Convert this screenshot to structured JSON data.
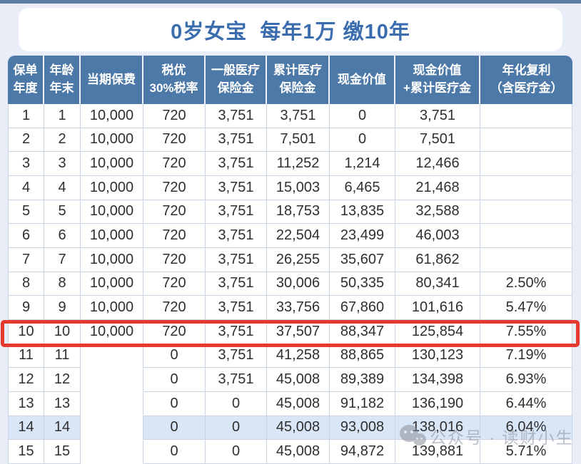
{
  "page": {
    "title": "0岁女宝  每年1万 缴10年",
    "watermark_text": "公众号 · 读财小生"
  },
  "colors": {
    "page_background": "#e9edf8",
    "top_bar": "#5d7fa7",
    "title_text": "#3a6cae",
    "header_background": "#4d79a8",
    "header_text": "#ffffff",
    "grid_line": "#ccd5e4",
    "highlight_row_background": "#d9e6f7",
    "red_box_border": "#e6392d",
    "cell_text": "#2f2f2f"
  },
  "table": {
    "headers": [
      "保单\n年度",
      "年龄\n年末",
      "当期保费",
      "税优\n30%税率",
      "一般医疗\n保险金",
      "累计医疗\n保险金",
      "现金价值",
      "现金价值\n+累计医疗金",
      "年化复利\n（含医疗金）"
    ],
    "rows": [
      {
        "cells": [
          "1",
          "1",
          "10,000",
          "720",
          "3,751",
          "3,751",
          "0",
          "3,751",
          ""
        ]
      },
      {
        "cells": [
          "2",
          "2",
          "10,000",
          "720",
          "3,751",
          "7,501",
          "0",
          "7,501",
          ""
        ]
      },
      {
        "cells": [
          "3",
          "3",
          "10,000",
          "720",
          "3,751",
          "11,252",
          "1,214",
          "12,466",
          ""
        ]
      },
      {
        "cells": [
          "4",
          "4",
          "10,000",
          "720",
          "3,751",
          "15,003",
          "6,465",
          "21,468",
          ""
        ]
      },
      {
        "cells": [
          "5",
          "5",
          "10,000",
          "720",
          "3,751",
          "18,753",
          "13,835",
          "32,588",
          ""
        ]
      },
      {
        "cells": [
          "6",
          "6",
          "10,000",
          "720",
          "3,751",
          "22,504",
          "23,499",
          "46,003",
          ""
        ]
      },
      {
        "cells": [
          "7",
          "7",
          "10,000",
          "720",
          "3,751",
          "26,255",
          "35,607",
          "61,862",
          ""
        ]
      },
      {
        "cells": [
          "8",
          "8",
          "10,000",
          "720",
          "3,751",
          "30,006",
          "50,335",
          "80,341",
          "2.50%"
        ]
      },
      {
        "cells": [
          "9",
          "9",
          "10,000",
          "720",
          "3,751",
          "33,756",
          "67,860",
          "101,616",
          "5.47%"
        ]
      },
      {
        "cells": [
          "10",
          "10",
          "10,000",
          "720",
          "3,751",
          "37,507",
          "88,347",
          "125,854",
          "7.55%"
        ]
      },
      {
        "cells": [
          "11",
          "11",
          "",
          "0",
          "3,751",
          "41,258",
          "88,865",
          "130,123",
          "7.19%"
        ]
      },
      {
        "cells": [
          "12",
          "12",
          "",
          "0",
          "3,751",
          "45,008",
          "89,389",
          "134,398",
          "6.93%"
        ]
      },
      {
        "cells": [
          "13",
          "13",
          "",
          "0",
          "0",
          "45,008",
          "91,182",
          "136,190",
          "6.44%"
        ]
      },
      {
        "cells": [
          "14",
          "14",
          "",
          "0",
          "0",
          "45,008",
          "93,008",
          "138,016",
          "6.04%"
        ]
      },
      {
        "cells": [
          "15",
          "15",
          "",
          "0",
          "0",
          "45,008",
          "94,872",
          "139,881",
          "5.71%"
        ]
      }
    ],
    "red_box_row_index": 9,
    "highlight_row_index": 13,
    "merged_blank_column": {
      "column_index": 2,
      "row_start_index": 10,
      "row_end_index": 14
    }
  }
}
